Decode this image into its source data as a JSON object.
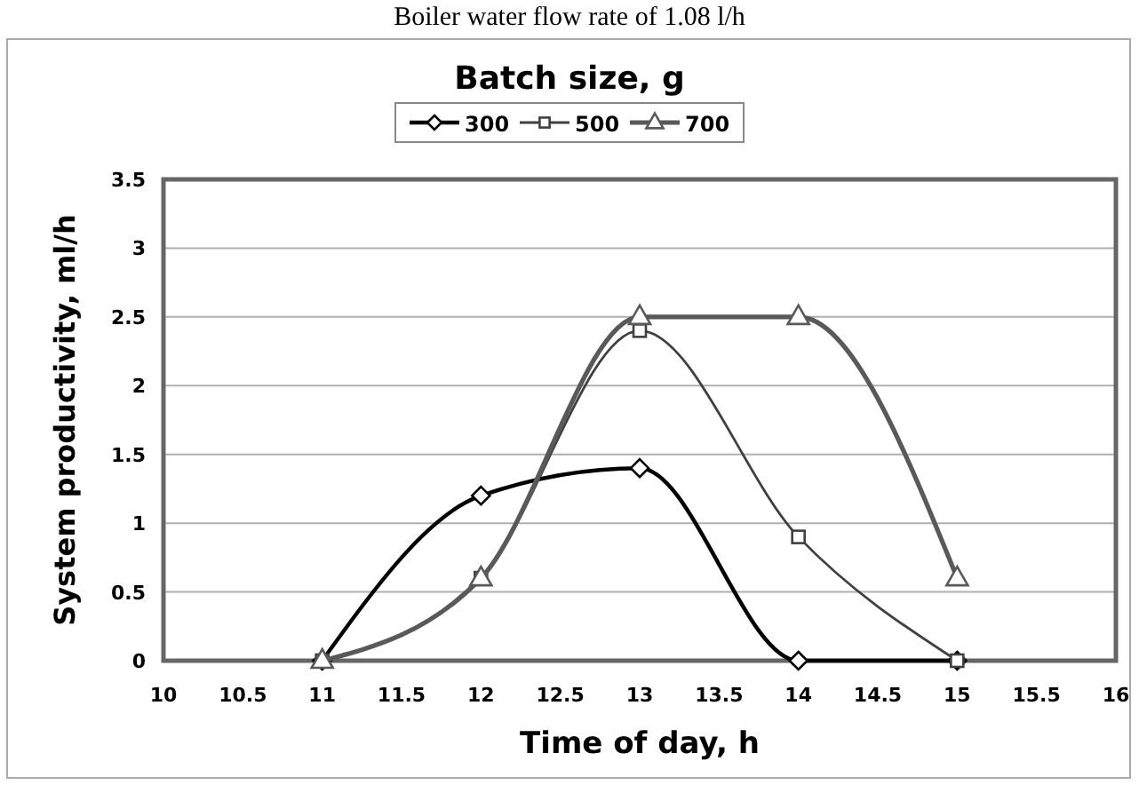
{
  "chart_data": {
    "type": "line",
    "title": "Boiler water flow rate of 1.08 l/h",
    "legend_title": "Batch size, g",
    "xlabel": "Time of day, h",
    "ylabel": "System productivity, ml/h",
    "x": [
      11,
      12,
      13,
      14,
      15
    ],
    "series": [
      {
        "name": "300",
        "color": "#000000",
        "marker": "diamond",
        "values": [
          0,
          1.2,
          1.4,
          0,
          0
        ]
      },
      {
        "name": "500",
        "color": "#404040",
        "marker": "square",
        "values": [
          0,
          0.6,
          2.4,
          0.9,
          0
        ]
      },
      {
        "name": "700",
        "color": "#595959",
        "marker": "triangle",
        "values": [
          0,
          0.6,
          2.5,
          2.5,
          0.6
        ]
      }
    ],
    "xlim": [
      10,
      16
    ],
    "xticks": [
      10,
      10.5,
      11,
      11.5,
      12,
      12.5,
      13,
      13.5,
      14,
      14.5,
      15,
      15.5,
      16
    ],
    "ylim": [
      0,
      3.5
    ],
    "yticks": [
      0,
      0.5,
      1,
      1.5,
      2,
      2.5,
      3,
      3.5
    ],
    "grid": "y",
    "legend": "top",
    "line_style": "solid"
  }
}
